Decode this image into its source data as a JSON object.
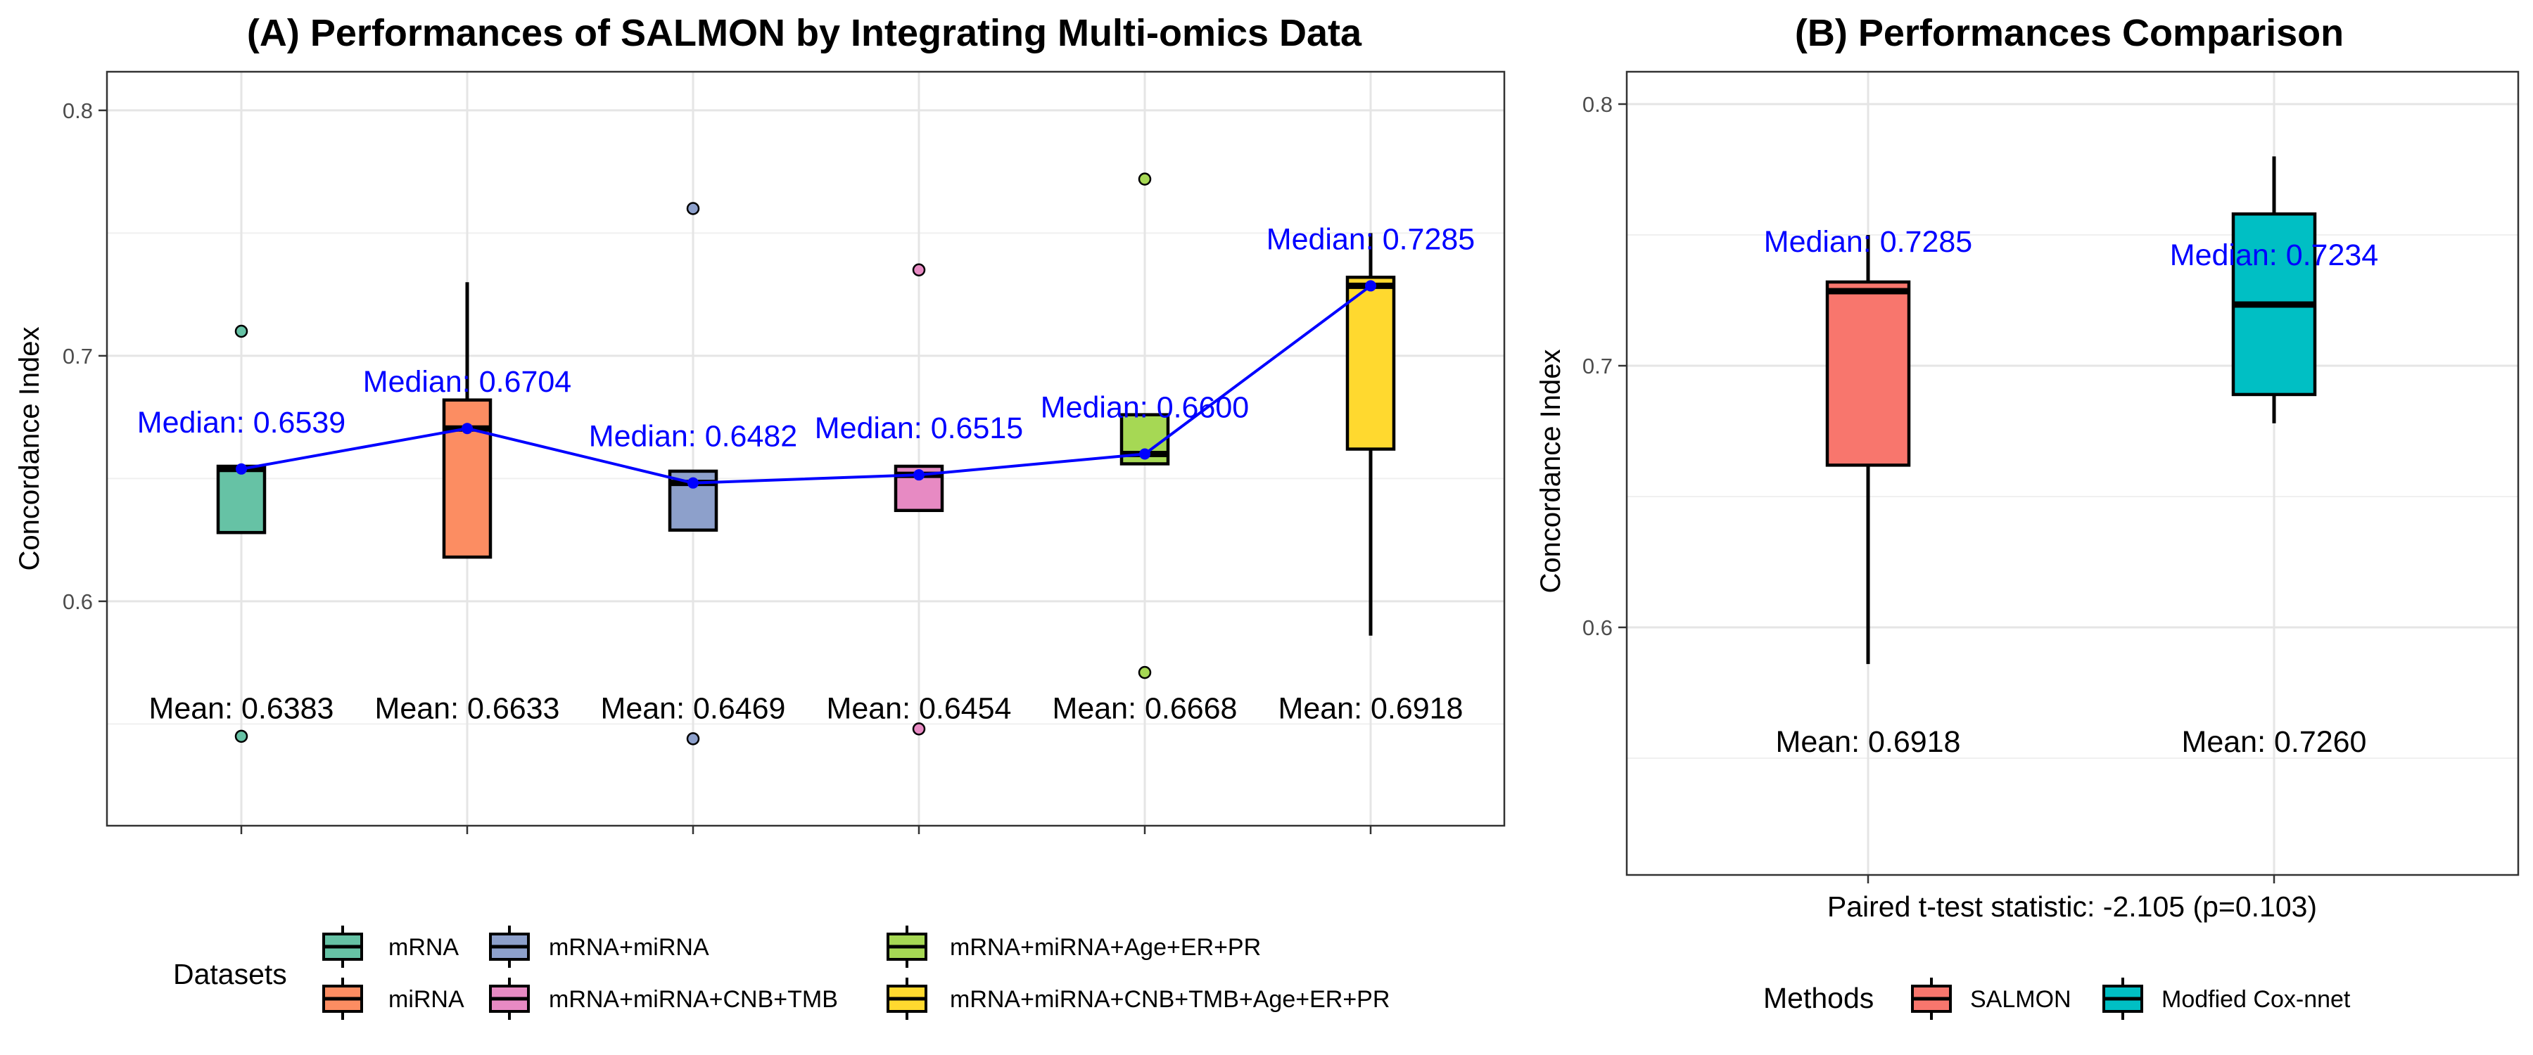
{
  "chart_data": [
    {
      "type": "box",
      "title": "(A) Performances of SALMON by Integrating Multi-omics Data",
      "xlabel": "",
      "ylabel": "Concordance Index",
      "ylim": [
        0.507,
        0.815
      ],
      "yticks": [
        "0.6",
        "0.7",
        "0.8"
      ],
      "grid": true,
      "legend_position": "bottom",
      "legend_title": "Datasets",
      "categories": [
        "mRNA",
        "miRNA",
        "mRNA+miRNA",
        "mRNA+miRNA+CNB+TMB",
        "mRNA+miRNA+Age+ER+PR",
        "mRNA+miRNA+CNB+TMB+Age+ER+PR"
      ],
      "colors": [
        "#66c2a5",
        "#fc8d62",
        "#8da0cb",
        "#e78ac3",
        "#a6d854",
        "#ffd92f"
      ],
      "boxes": [
        {
          "q1": 0.628,
          "median": 0.6539,
          "q3": 0.655,
          "whisker_low": 0.628,
          "whisker_high": 0.655,
          "outliers": [
            0.71,
            0.545
          ]
        },
        {
          "q1": 0.618,
          "median": 0.6704,
          "q3": 0.682,
          "whisker_low": 0.618,
          "whisker_high": 0.73,
          "outliers": []
        },
        {
          "q1": 0.629,
          "median": 0.6482,
          "q3": 0.653,
          "whisker_low": 0.629,
          "whisker_high": 0.653,
          "outliers": [
            0.76,
            0.544
          ]
        },
        {
          "q1": 0.637,
          "median": 0.6515,
          "q3": 0.655,
          "whisker_low": 0.637,
          "whisker_high": 0.655,
          "outliers": [
            0.735,
            0.548
          ]
        },
        {
          "q1": 0.656,
          "median": 0.66,
          "q3": 0.676,
          "whisker_low": 0.656,
          "whisker_high": 0.676,
          "outliers": [
            0.772,
            0.571
          ]
        },
        {
          "q1": 0.662,
          "median": 0.7285,
          "q3": 0.732,
          "whisker_low": 0.586,
          "whisker_high": 0.75,
          "outliers": []
        }
      ],
      "medians": [
        0.6539,
        0.6704,
        0.6482,
        0.6515,
        0.66,
        0.7285
      ],
      "median_labels": [
        "Median: 0.6539",
        "Median: 0.6704",
        "Median: 0.6482",
        "Median: 0.6515",
        "Median: 0.6600",
        "Median: 0.7285"
      ],
      "mean_labels": [
        "Mean: 0.6383",
        "Mean: 0.6633",
        "Mean: 0.6469",
        "Mean: 0.6454",
        "Mean: 0.6668",
        "Mean: 0.6918"
      ],
      "mean_label_y": 0.5565,
      "median_line_color": "#0000ff"
    },
    {
      "type": "box",
      "title": "(B) Performances Comparison",
      "xlabel": "Paired t-test statistic: -2.105 (p=0.103)",
      "ylabel": "Concordance Index",
      "ylim": [
        0.5,
        0.815
      ],
      "yticks": [
        "0.6",
        "0.7",
        "0.8"
      ],
      "grid": true,
      "legend_position": "bottom",
      "legend_title": "Methods",
      "categories": [
        "SALMON",
        "Modfied Cox-nnet"
      ],
      "colors": [
        "#f8766d",
        "#00bfc4"
      ],
      "boxes": [
        {
          "q1": 0.662,
          "median": 0.7285,
          "q3": 0.732,
          "whisker_low": 0.586,
          "whisker_high": 0.75,
          "outliers": []
        },
        {
          "q1": 0.689,
          "median": 0.7234,
          "q3": 0.758,
          "whisker_low": 0.678,
          "whisker_high": 0.78,
          "outliers": []
        }
      ],
      "median_labels": [
        "Median: 0.7285",
        "Median: 0.7234"
      ],
      "mean_labels": [
        "Mean: 0.6918",
        "Mean: 0.7260"
      ],
      "mean_label_y": 0.5565
    }
  ]
}
